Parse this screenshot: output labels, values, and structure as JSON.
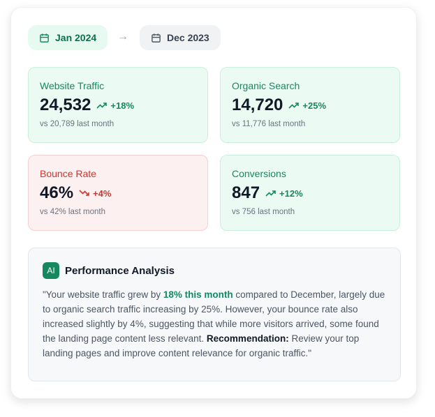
{
  "period": {
    "current": "Jan 2024",
    "previous": "Dec 2023"
  },
  "metrics": [
    {
      "label": "Website Traffic",
      "value": "24,532",
      "change": "+18%",
      "trend": "up",
      "comparison": "vs 20,789 last month"
    },
    {
      "label": "Organic Search",
      "value": "14,720",
      "change": "+25%",
      "trend": "up",
      "comparison": "vs 11,776 last month"
    },
    {
      "label": "Bounce Rate",
      "value": "46%",
      "change": "+4%",
      "trend": "down",
      "comparison": "vs 42% last month"
    },
    {
      "label": "Conversions",
      "value": "847",
      "change": "+12%",
      "trend": "up",
      "comparison": "vs 756 last month"
    }
  ],
  "analysis": {
    "badge": "AI",
    "title": "Performance Analysis",
    "text1": "\"Your website traffic grew by ",
    "highlight": "18% this month",
    "text2": " compared to December, largely due to organic search traffic increasing by 25%. However, your bounce rate also increased slightly by 4%, suggesting that while more visitors arrived, some found the landing page content less relevant. ",
    "rec_label": "Recommendation:",
    "text3": " Review your top landing pages and improve content relevance for organic traffic.\""
  },
  "colors": {
    "positive": "#15885f",
    "negative": "#d0342c"
  }
}
